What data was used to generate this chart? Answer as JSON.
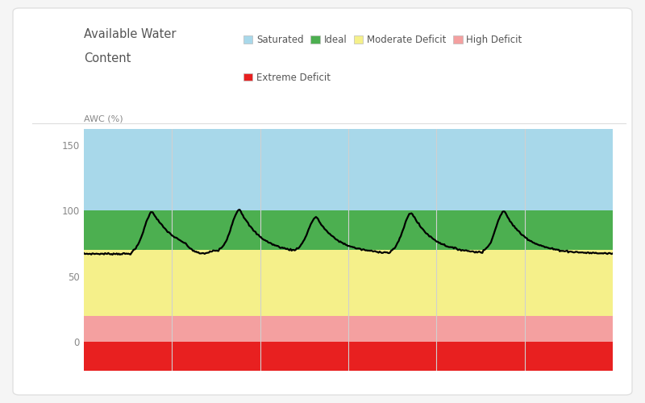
{
  "title_line1": "Available Water",
  "title_line2": "Content",
  "ylabel": "AWC (%)",
  "ylim": [
    -22,
    162
  ],
  "yticks": [
    0,
    50,
    100,
    150
  ],
  "zones": [
    {
      "label": "Saturated",
      "ymin": 100,
      "ymax": 162,
      "color": "#A8D8EA"
    },
    {
      "label": "Ideal",
      "ymin": 70,
      "ymax": 100,
      "color": "#4CAF50"
    },
    {
      "label": "Moderate Deficit",
      "ymin": 20,
      "ymax": 70,
      "color": "#F5F08A"
    },
    {
      "label": "High Deficit",
      "ymin": 0,
      "ymax": 20,
      "color": "#F4A0A0"
    },
    {
      "label": "Extreme Deficit",
      "ymin": -22,
      "ymax": 0,
      "color": "#E82020"
    }
  ],
  "legend_colors": {
    "Saturated": "#A8D8EA",
    "Ideal": "#4CAF50",
    "Moderate Deficit": "#F5F08A",
    "High Deficit": "#F4A0A0",
    "Extreme Deficit": "#E82020"
  },
  "background_color": "#f5f5f5",
  "card_color": "#ffffff",
  "grid_color": "#d0d0d0",
  "line_color": "#000000",
  "line_width": 1.6,
  "n_vertical_lines": 6,
  "title_fontsize": 10.5,
  "ylabel_fontsize": 8,
  "tick_fontsize": 8.5,
  "legend_fontsize": 8.5,
  "tick_color": "#888888"
}
